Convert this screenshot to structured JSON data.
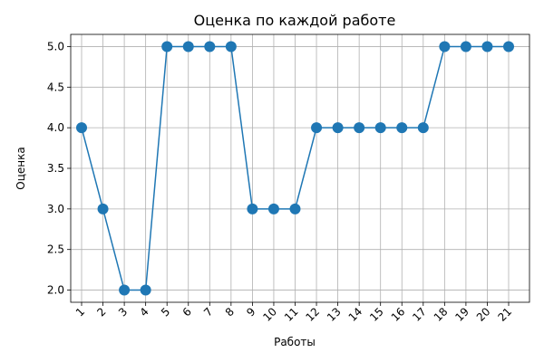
{
  "chart_data": {
    "type": "line",
    "title": "Оценка по каждой работе",
    "xlabel": "Работы",
    "ylabel": "Оценка",
    "x": [
      "1",
      "2",
      "3",
      "4",
      "5",
      "6",
      "7",
      "8",
      "9",
      "10",
      "11",
      "12",
      "13",
      "14",
      "15",
      "16",
      "17",
      "18",
      "19",
      "20",
      "21"
    ],
    "series": [
      {
        "values": [
          4,
          3,
          2,
          2,
          5,
          5,
          5,
          5,
          3,
          3,
          3,
          4,
          4,
          4,
          4,
          4,
          4,
          5,
          5,
          5,
          5
        ],
        "color": "#1f77b4",
        "marker": "circle"
      }
    ],
    "ylim": [
      1.85,
      5.15
    ],
    "yticks": [
      "2.0",
      "2.5",
      "3.0",
      "3.5",
      "4.0",
      "4.5",
      "5.0"
    ],
    "grid": true,
    "xtick_rotation": 45
  }
}
